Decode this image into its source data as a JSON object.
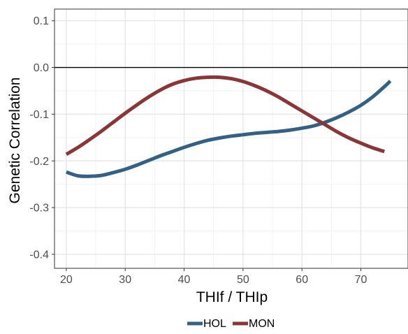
{
  "chart_data": {
    "type": "line",
    "xlabel": "THIf / THIp",
    "ylabel": "Genetic Correlation",
    "xlim": [
      18,
      78
    ],
    "ylim": [
      -0.43,
      0.125
    ],
    "x_ticks": [
      20,
      30,
      40,
      50,
      60,
      70
    ],
    "x_tick_labels": [
      "20",
      "30",
      "40",
      "50",
      "60",
      "70"
    ],
    "y_ticks": [
      0.1,
      0.0,
      -0.1,
      -0.2,
      -0.3,
      -0.4
    ],
    "y_tick_labels": [
      "0.1",
      "0.0",
      "-0.1",
      "-0.2",
      "-0.3",
      "-0.4"
    ],
    "reference_line_y": 0.0,
    "grid": true,
    "legend_position": "bottom",
    "series": [
      {
        "name": "HOL",
        "color": "#336186",
        "x": [
          20,
          22,
          24,
          26,
          28,
          30,
          32,
          34,
          36,
          38,
          40,
          42,
          44,
          46,
          48,
          50,
          52,
          54,
          56,
          58,
          60,
          62,
          64,
          66,
          68,
          70,
          72,
          74,
          75
        ],
        "y": [
          -0.224,
          -0.232,
          -0.233,
          -0.231,
          -0.225,
          -0.218,
          -0.209,
          -0.199,
          -0.189,
          -0.18,
          -0.171,
          -0.163,
          -0.156,
          -0.151,
          -0.147,
          -0.144,
          -0.141,
          -0.139,
          -0.137,
          -0.134,
          -0.13,
          -0.125,
          -0.117,
          -0.107,
          -0.095,
          -0.081,
          -0.063,
          -0.041,
          -0.029
        ]
      },
      {
        "name": "MON",
        "color": "#8b3536",
        "x": [
          20,
          22,
          24,
          26,
          28,
          30,
          32,
          34,
          36,
          38,
          40,
          42,
          44,
          46,
          48,
          50,
          52,
          54,
          56,
          58,
          60,
          62,
          64,
          66,
          68,
          70,
          72,
          74
        ],
        "y": [
          -0.186,
          -0.171,
          -0.154,
          -0.136,
          -0.117,
          -0.098,
          -0.08,
          -0.063,
          -0.048,
          -0.036,
          -0.028,
          -0.023,
          -0.021,
          -0.021,
          -0.024,
          -0.03,
          -0.039,
          -0.05,
          -0.063,
          -0.078,
          -0.093,
          -0.108,
          -0.123,
          -0.138,
          -0.151,
          -0.162,
          -0.172,
          -0.18
        ]
      }
    ]
  }
}
